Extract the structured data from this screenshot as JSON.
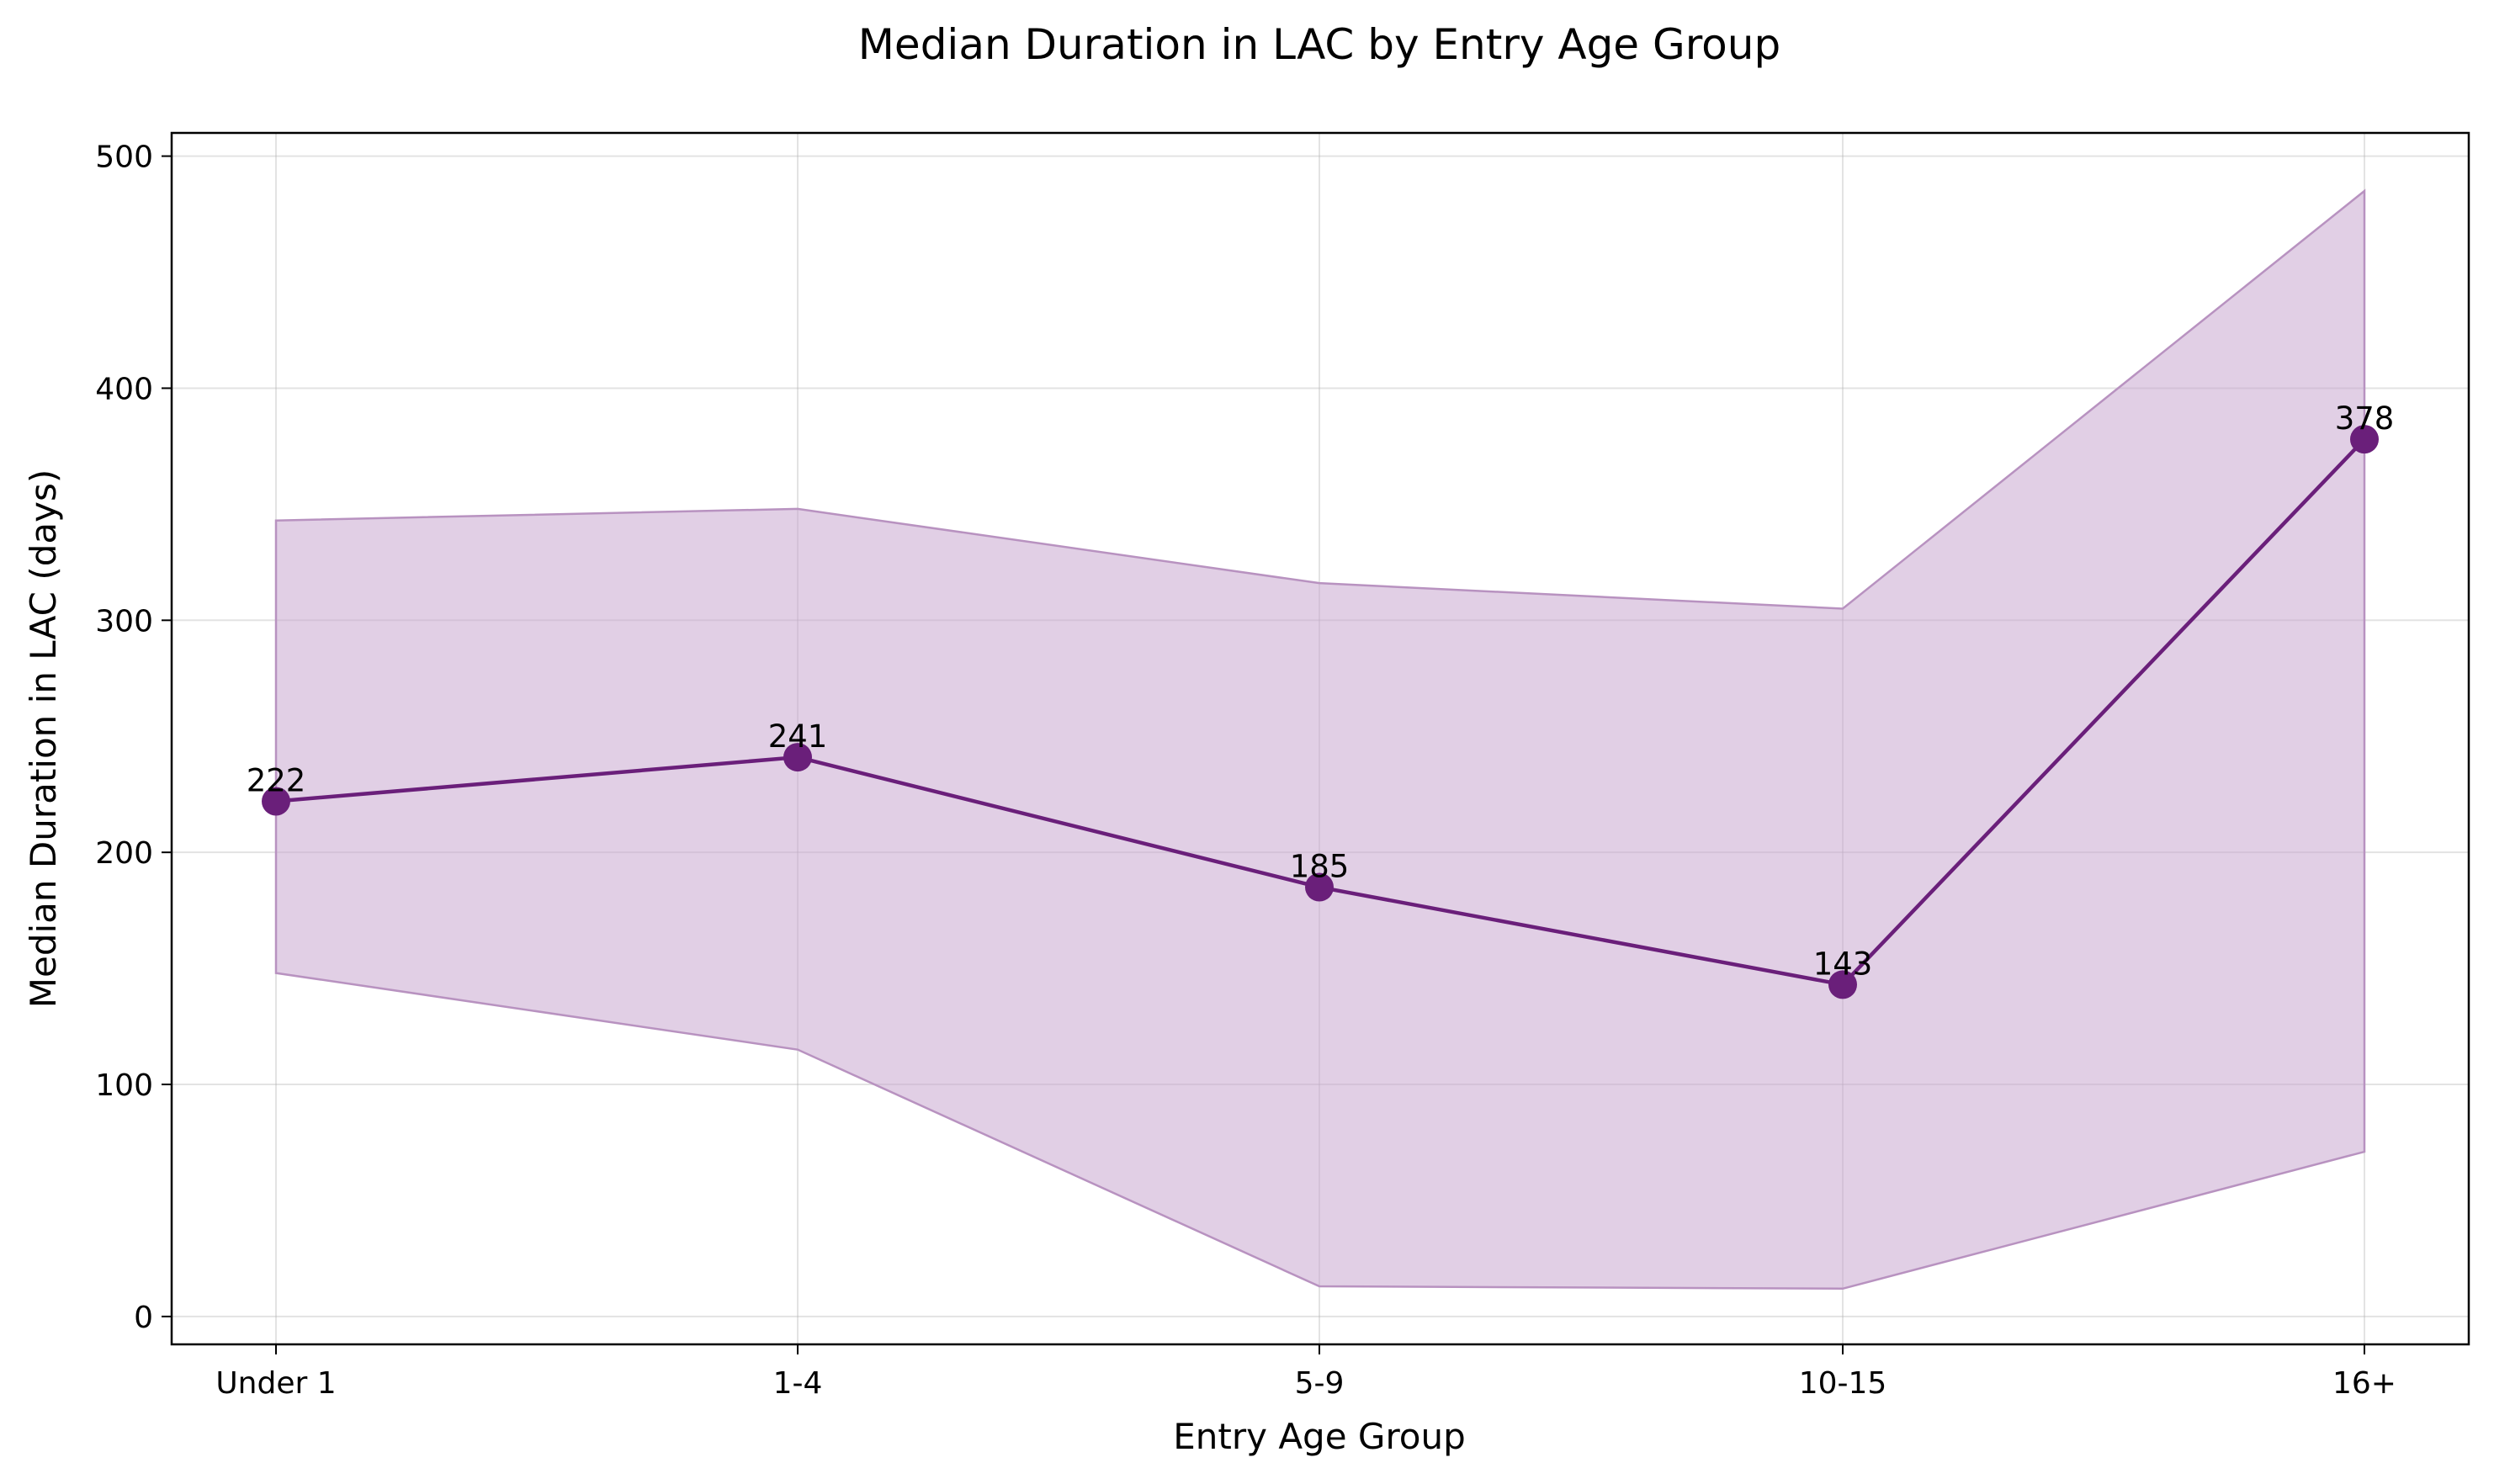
{
  "chart_data": {
    "type": "line",
    "title": "Median Duration in LAC by Entry Age Group",
    "xlabel": "Entry Age Group",
    "ylabel": "Median Duration in LAC (days)",
    "categories": [
      "Under 1",
      "1-4",
      "5-9",
      "10-15",
      "16+"
    ],
    "series": [
      {
        "values": [
          222,
          241,
          185,
          143,
          378
        ],
        "band_upper": [
          343,
          348,
          316,
          305,
          485
        ],
        "band_lower": [
          148,
          115,
          13,
          12,
          71
        ]
      }
    ],
    "ylim": [
      -12,
      510
    ],
    "yticks": [
      0,
      100,
      200,
      300,
      400,
      500
    ],
    "grid": true,
    "colors": {
      "line": "#6a1f7a",
      "marker": "#6a1f7a",
      "band_fill": "#c9a8cf",
      "band_edge": "#b892c0"
    }
  }
}
